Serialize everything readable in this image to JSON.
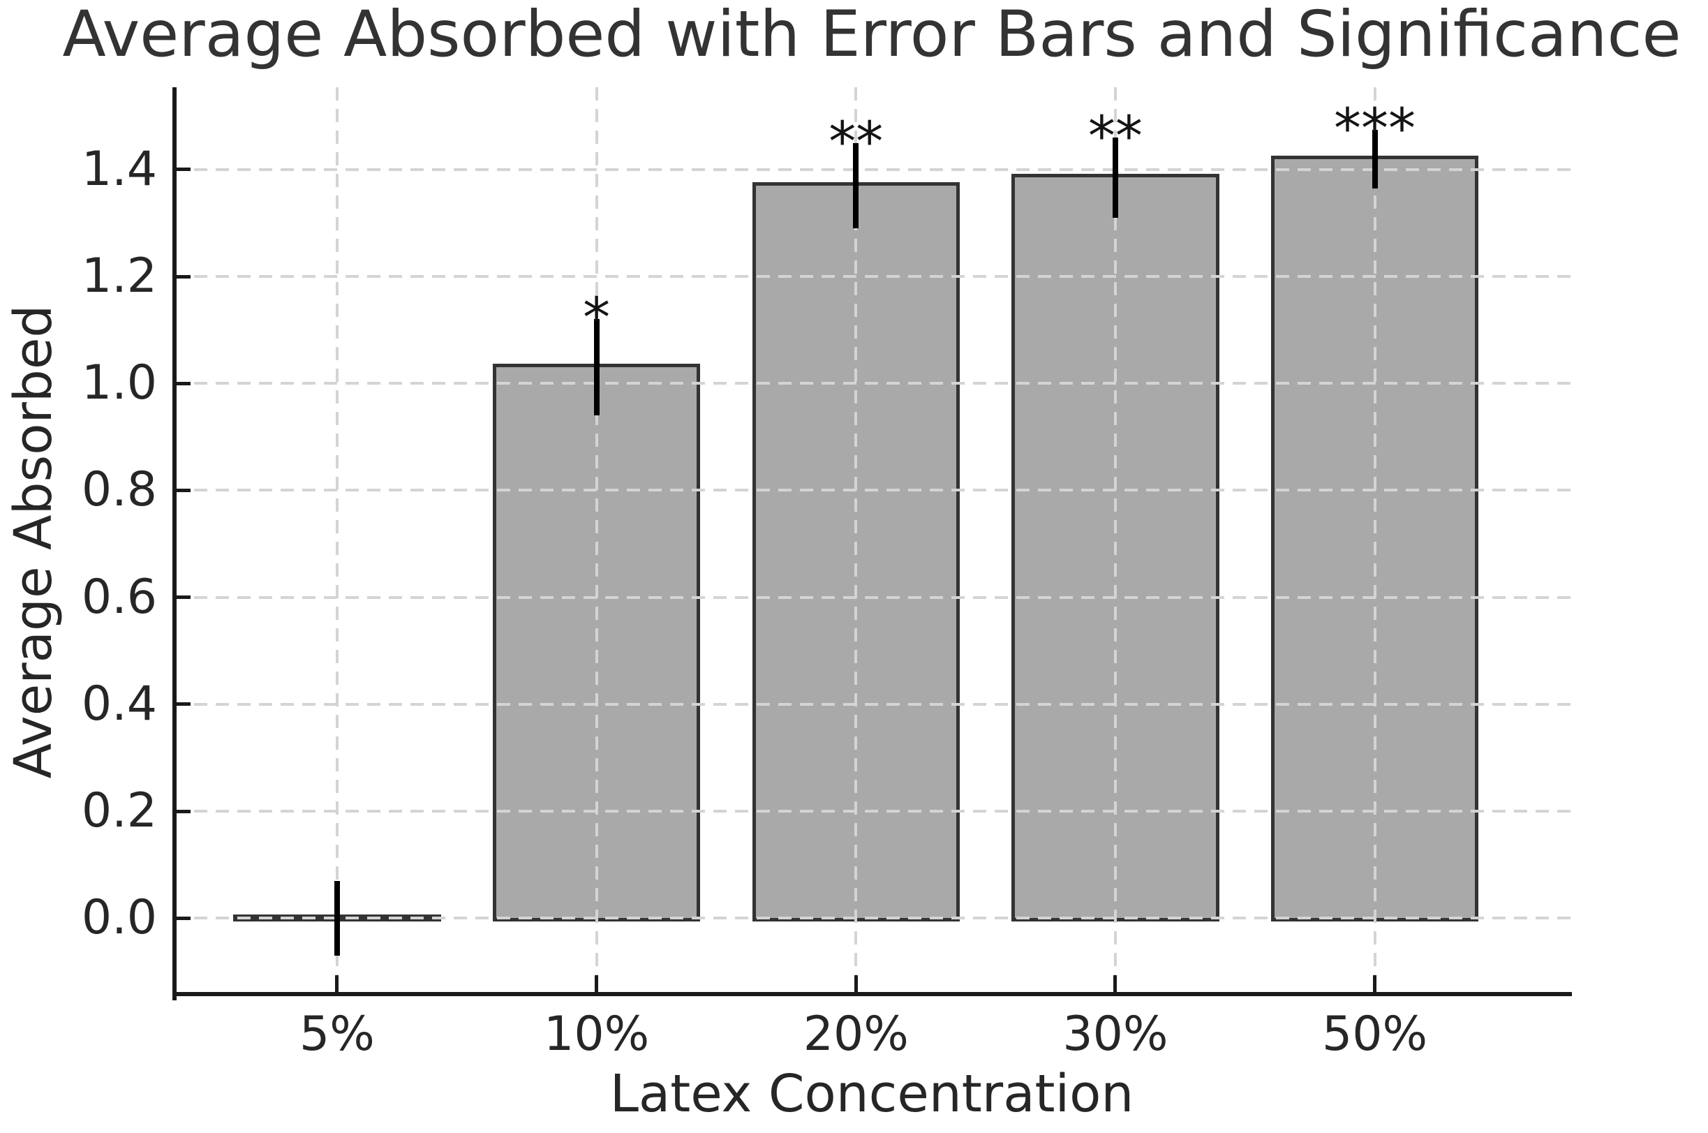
{
  "chart_data": {
    "type": "bar",
    "title": "Average Absorbed with Error Bars and Significance",
    "xlabel": "Latex Concentration",
    "ylabel": "Average Absorbed",
    "categories": [
      "5%",
      "10%",
      "20%",
      "30%",
      "50%"
    ],
    "values": [
      0.0,
      1.03,
      1.37,
      1.385,
      1.42
    ],
    "errors": [
      0.07,
      0.09,
      0.08,
      0.075,
      0.055
    ],
    "significance": [
      "",
      "*",
      "**",
      "**",
      "***"
    ],
    "yticks": [
      0.0,
      0.2,
      0.4,
      0.6,
      0.8,
      1.0,
      1.2,
      1.4
    ],
    "ytick_labels": [
      "0.0",
      "0.2",
      "0.4",
      "0.6",
      "0.8",
      "1.0",
      "1.2",
      "1.4"
    ],
    "ylim": [
      -0.146,
      1.554
    ],
    "xlim": [
      -0.635,
      4.76
    ],
    "bar_width_frac": 0.8,
    "grid": true,
    "grid_style": "dashed",
    "legend": "none",
    "colors": {
      "bar_fill": "#a9a9a9",
      "bar_edge": "#333333",
      "error_bar": "#000000",
      "grid_line": "#d4d4d4",
      "spine": "#1a1a1a",
      "text": "#262626",
      "background": "#ffffff"
    }
  }
}
